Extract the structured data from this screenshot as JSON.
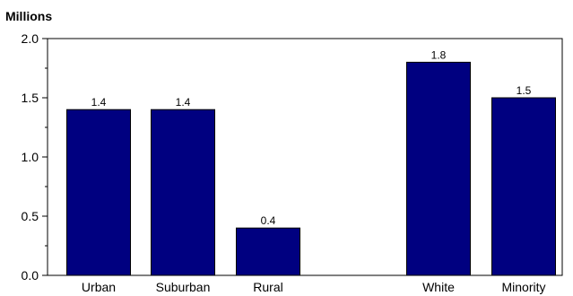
{
  "chart_data": {
    "type": "bar",
    "ylabel": "Millions",
    "ylim": [
      0,
      2.0
    ],
    "yticks": [
      "0.0",
      "0.5",
      "1.0",
      "1.5",
      "2.0"
    ],
    "categories": [
      "Urban",
      "Suburban",
      "Rural",
      "White",
      "Minority"
    ],
    "values": [
      1.4,
      1.4,
      0.4,
      1.8,
      1.5
    ],
    "data_labels": [
      "1.4",
      "1.4",
      "0.4",
      "1.8",
      "1.5"
    ],
    "gap_after_category_index": 2,
    "bar_color": "#000080",
    "grid": false,
    "legend": "none"
  }
}
